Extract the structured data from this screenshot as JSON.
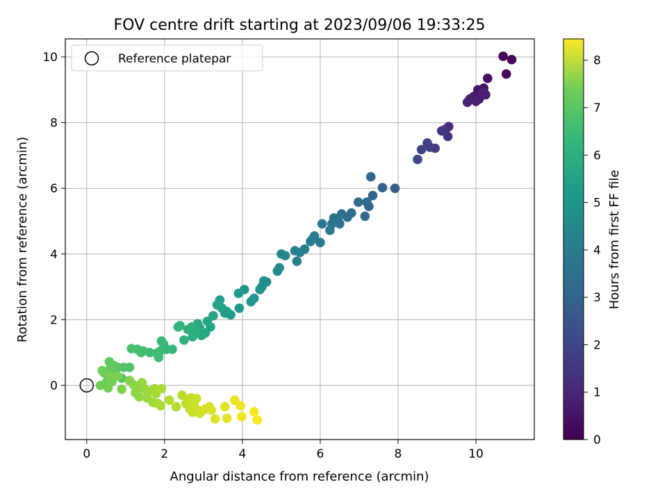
{
  "chart_data": {
    "type": "scatter",
    "title": "FOV centre drift starting at 2023/09/06 19:33:25",
    "xlabel": "Angular distance from reference (arcmin)",
    "ylabel": "Rotation from reference (arcmin)",
    "xlim": [
      -0.55,
      11.5
    ],
    "ylim": [
      -1.65,
      10.55
    ],
    "xticks": [
      "0",
      "2",
      "4",
      "6",
      "8",
      "10"
    ],
    "yticks": [
      "0",
      "2",
      "4",
      "6",
      "8",
      "10"
    ],
    "grid": true,
    "legend": {
      "placement": "top-left",
      "label": "Reference platepar"
    },
    "reference_point": {
      "x": 0,
      "y": 0
    },
    "colorbar": {
      "label": "Hours from first FF file",
      "colormap": "viridis",
      "range": [
        0,
        8.45
      ],
      "ticks": [
        "0",
        "1",
        "2",
        "3",
        "4",
        "5",
        "6",
        "7",
        "8"
      ]
    },
    "series": [
      {
        "x": [
          10.7,
          10.92,
          10.78,
          10.3,
          10.2,
          10.05,
          10.15,
          10.12,
          9.95,
          9.85,
          10.08,
          10.25,
          9.9,
          10.0,
          9.78,
          10.18,
          9.3,
          9.22,
          9.28,
          9.12,
          8.95,
          8.82,
          8.75,
          8.6,
          8.5,
          7.92,
          7.6,
          7.35,
          7.3,
          7.25,
          7.15,
          7.2,
          6.98,
          6.8,
          6.7,
          6.55,
          6.5,
          6.45,
          6.35,
          6.3,
          6.25,
          6.05,
          6.0,
          5.85,
          5.8,
          5.75,
          5.6,
          5.48,
          5.4,
          5.35,
          5.1,
          5.0,
          4.95,
          4.9,
          4.62,
          4.55,
          4.5,
          4.45,
          4.3,
          4.22,
          4.05,
          3.92,
          3.9,
          3.7,
          3.6,
          3.55,
          3.48,
          3.42,
          3.35,
          3.25,
          3.18,
          3.1,
          3.05,
          2.95,
          2.9,
          2.85,
          2.8,
          2.72,
          2.7,
          2.6,
          2.5,
          2.4,
          2.35,
          2.2,
          2.05,
          1.98,
          1.92,
          1.9,
          1.85,
          1.8,
          1.62,
          1.45,
          1.4,
          1.3,
          1.15,
          1.1,
          0.95,
          0.9,
          0.8,
          0.72,
          0.7,
          0.65,
          0.6,
          0.58,
          0.55,
          0.5,
          0.45,
          0.4,
          0.35,
          0.55,
          0.58,
          0.65,
          0.8,
          0.9,
          1.1,
          1.2,
          1.25,
          1.3,
          1.35,
          1.42,
          1.5,
          1.55,
          1.6,
          1.7,
          1.75,
          1.78,
          1.82,
          1.9,
          1.92,
          2.12,
          2.3,
          2.45,
          2.55,
          2.6,
          2.65,
          2.68,
          2.7,
          2.72,
          2.75,
          2.82,
          2.85,
          2.9,
          2.95,
          3.05,
          3.15,
          3.2,
          3.3,
          3.55,
          3.6,
          3.8,
          3.95,
          3.98,
          4.3,
          4.38
        ],
        "y": [
          10.02,
          9.92,
          9.48,
          9.35,
          9.05,
          9.0,
          8.98,
          8.88,
          8.8,
          8.72,
          8.72,
          8.85,
          8.75,
          8.65,
          8.62,
          8.92,
          7.88,
          7.8,
          7.58,
          7.75,
          7.22,
          7.25,
          7.38,
          7.18,
          6.88,
          6.0,
          6.02,
          5.78,
          6.35,
          5.45,
          5.15,
          5.58,
          5.58,
          5.25,
          5.12,
          5.22,
          4.92,
          5.05,
          5.1,
          4.92,
          4.72,
          4.92,
          4.35,
          4.55,
          4.45,
          4.38,
          4.15,
          4.05,
          3.78,
          4.1,
          3.95,
          4.0,
          3.58,
          3.48,
          3.15,
          3.18,
          3.0,
          2.92,
          2.65,
          2.55,
          2.92,
          2.35,
          2.8,
          2.15,
          2.25,
          2.2,
          2.35,
          2.6,
          2.45,
          2.12,
          1.78,
          1.95,
          1.6,
          1.52,
          1.75,
          1.88,
          1.62,
          1.48,
          1.78,
          1.7,
          1.38,
          1.82,
          1.78,
          1.1,
          1.1,
          1.25,
          1.35,
          1.05,
          0.85,
          0.98,
          1.0,
          1.05,
          1.0,
          1.1,
          1.12,
          0.55,
          0.55,
          0.22,
          0.55,
          0.42,
          0.6,
          0.28,
          0.5,
          0.72,
          0.2,
          0.08,
          0.38,
          0.45,
          0.0,
          -0.08,
          0.3,
          0.12,
          0.28,
          -0.12,
          0.15,
          0.02,
          -0.22,
          -0.1,
          -0.35,
          0.08,
          -0.12,
          -0.38,
          -0.18,
          -0.52,
          -0.1,
          -0.25,
          -0.55,
          -0.62,
          -0.1,
          -0.45,
          -0.65,
          -0.3,
          -0.55,
          -0.45,
          -0.72,
          -0.38,
          -0.62,
          -0.82,
          -0.55,
          -0.4,
          -0.75,
          -0.85,
          -0.78,
          -0.72,
          -0.65,
          -0.75,
          -1.02,
          -0.65,
          -1.0,
          -0.45,
          -0.62,
          -0.95,
          -0.8,
          -1.05
        ],
        "hours": [
          0.05,
          0.1,
          0.15,
          0.3,
          0.4,
          0.45,
          0.5,
          0.55,
          0.6,
          0.65,
          0.68,
          0.7,
          0.72,
          0.74,
          0.76,
          0.78,
          1.1,
          1.15,
          1.2,
          1.25,
          1.5,
          1.55,
          1.6,
          1.7,
          1.8,
          2.5,
          2.6,
          2.7,
          2.75,
          2.8,
          2.85,
          2.9,
          2.95,
          3.0,
          3.05,
          3.1,
          3.15,
          3.2,
          3.25,
          3.3,
          3.35,
          3.4,
          3.45,
          3.5,
          3.55,
          3.6,
          3.65,
          3.7,
          3.75,
          3.8,
          3.85,
          3.9,
          3.95,
          4.0,
          4.1,
          4.15,
          4.2,
          4.25,
          4.35,
          4.4,
          4.45,
          4.55,
          4.6,
          4.7,
          4.72,
          4.75,
          4.78,
          4.8,
          4.85,
          4.9,
          4.95,
          5.0,
          5.05,
          5.1,
          5.15,
          5.2,
          5.25,
          5.28,
          5.3,
          5.35,
          5.4,
          5.45,
          5.5,
          5.6,
          5.65,
          5.7,
          5.72,
          5.75,
          5.8,
          5.82,
          5.85,
          5.88,
          5.9,
          5.92,
          5.95,
          6.05,
          6.1,
          6.15,
          6.2,
          6.25,
          6.3,
          6.32,
          6.35,
          6.38,
          6.4,
          6.45,
          6.5,
          6.55,
          6.6,
          6.65,
          6.68,
          6.7,
          6.75,
          6.8,
          6.85,
          6.9,
          6.95,
          7.0,
          7.02,
          7.05,
          7.08,
          7.1,
          7.15,
          7.2,
          7.25,
          7.28,
          7.3,
          7.35,
          7.4,
          7.45,
          7.5,
          7.55,
          7.6,
          7.62,
          7.65,
          7.68,
          7.7,
          7.72,
          7.75,
          7.78,
          7.8,
          7.82,
          7.85,
          7.9,
          7.95,
          8.0,
          8.05,
          8.1,
          8.15,
          8.2,
          8.25,
          8.3,
          8.35,
          8.4
        ]
      }
    ]
  }
}
